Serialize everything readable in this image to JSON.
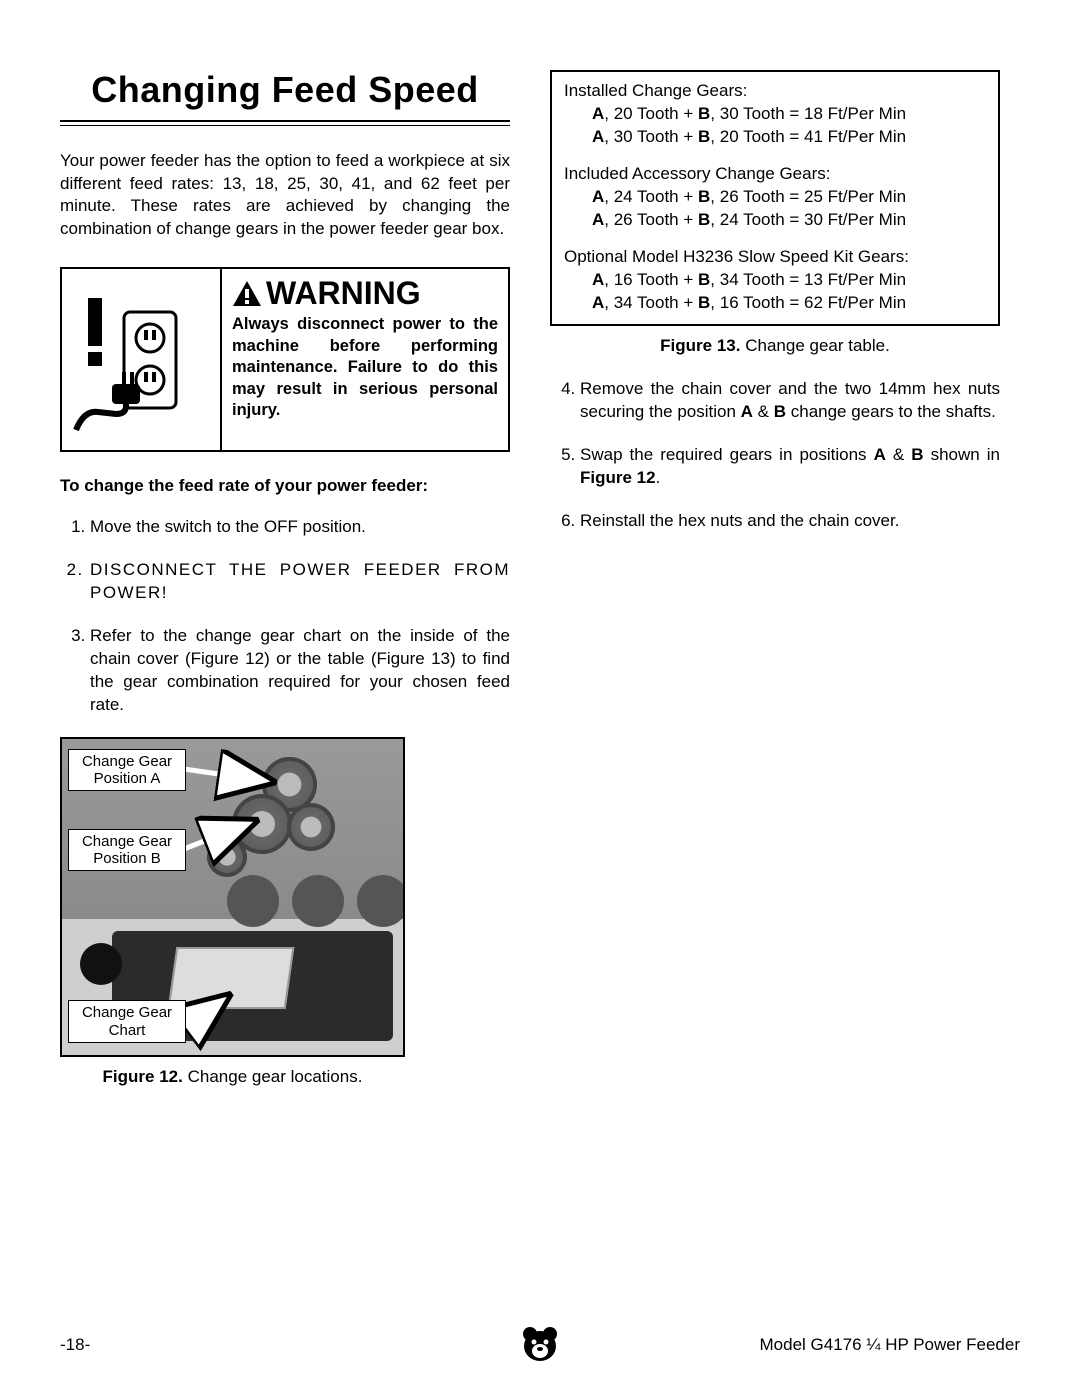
{
  "title": "Changing Feed Speed",
  "intro": "Your power feeder has the option to feed a workpiece at six different feed rates: 13, 18, 25, 30, 41, and 62 feet per minute. These rates are achieved by changing the combination of change gears in the power feeder gear box.",
  "warning": {
    "heading": "WARNING",
    "body": "Always disconnect power to the machine before performing maintenance. Failure to do this may result in serious personal injury."
  },
  "lead": "To change the feed rate of your power feeder:",
  "steps_1_3": [
    "Move the switch to the OFF position.",
    "DISCONNECT THE POWER FEEDER FROM POWER!",
    "Refer to the change gear chart on the inside of the chain cover (Figure 12) or the table (Figure 13) to find the gear combination required for your chosen feed rate."
  ],
  "fig12": {
    "callout_a": "Change Gear Position A",
    "callout_b": "Change Gear Position B",
    "callout_c": "Change Gear Chart",
    "caption_label": "Figure 12.",
    "caption_text": "Change gear locations."
  },
  "gear_table": {
    "groups": [
      {
        "heading": "Installed Change Gears:",
        "rows": [
          {
            "a": "20 Tooth",
            "b": "30 Tooth",
            "rate": "18 Ft/Per Min"
          },
          {
            "a": "30 Tooth",
            "b": "20 Tooth",
            "rate": "41 Ft/Per Min"
          }
        ]
      },
      {
        "heading": "Included Accessory Change Gears:",
        "rows": [
          {
            "a": "24 Tooth",
            "b": "26 Tooth",
            "rate": "25 Ft/Per Min"
          },
          {
            "a": "26 Tooth",
            "b": "24 Tooth",
            "rate": "30 Ft/Per Min"
          }
        ]
      },
      {
        "heading": "Optional Model H3236 Slow Speed Kit Gears:",
        "rows": [
          {
            "a": "16 Tooth",
            "b": "34 Tooth",
            "rate": "13 Ft/Per Min"
          },
          {
            "a": "34 Tooth",
            "b": "16 Tooth",
            "rate": "62 Ft/Per Min"
          }
        ]
      }
    ],
    "caption_label": "Figure 13.",
    "caption_text": "Change gear table."
  },
  "steps_4_6": [
    {
      "n": "4.",
      "html": "Remove the chain cover and the two 14mm hex nuts securing the position <b>A</b> & <b>B</b> change gears to the shafts."
    },
    {
      "n": "5.",
      "html": "Swap the required gears in positions <b>A</b> & <b>B</b> shown in <b>Figure 12</b>."
    },
    {
      "n": "6.",
      "html": "Reinstall the hex nuts and the chain cover."
    }
  ],
  "footer": {
    "page": "-18-",
    "model": "Model G4176 ¼ HP Power Feeder"
  },
  "colors": {
    "text": "#000000",
    "background": "#ffffff",
    "figure_bg": "#cfcfcf",
    "cover": "#2b2b2b"
  }
}
